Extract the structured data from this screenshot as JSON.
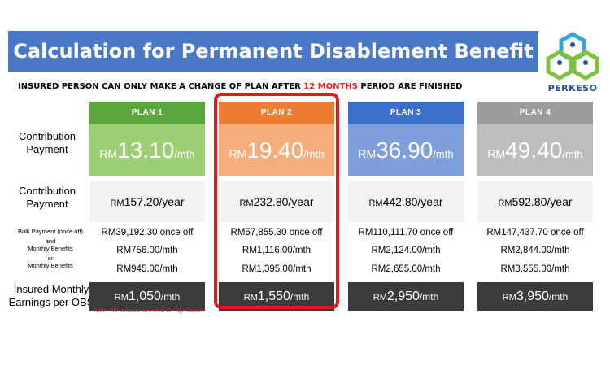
{
  "title": "Calculation for Permanent Disablement Benefit",
  "logo_text": "PERKESO",
  "notice": {
    "before": "INSURED PERSON CAN ONLY MAKE A CHANGE OF PLAN AFTER ",
    "highlight": "12 MONTHS",
    "after": " PERIOD ARE FINISHED"
  },
  "row_labels": {
    "contribution_monthly": "Contribution Payment",
    "contribution_yearly": "Contribution Payment",
    "bulk": "Bulk Payment (once off)",
    "and": "and",
    "monthly_benefits_1": "Monthly Benefits",
    "or": "or",
    "monthly_benefits_2": "Monthly Benefits",
    "insured_earnings": "Insured Monthly Earnings per OBS"
  },
  "currency": "RM",
  "mth_unit": "/mth",
  "year_unit": "/year",
  "plans": [
    {
      "name": "PLAN 1",
      "head_color": "#5aa83c",
      "body_color": "#9ccf74",
      "monthly": "13.10",
      "yearly": "157.20",
      "bulk": "RM39,192.30 once off",
      "benefit_and": "RM756.00/mth",
      "benefit_or": "RM945.00/mth",
      "earnings": "1,050"
    },
    {
      "name": "PLAN 2",
      "head_color": "#ed7d31",
      "body_color": "#f5ad7b",
      "monthly": "19.40",
      "yearly": "232.80",
      "bulk": "RM57,855.30 once off",
      "benefit_and": "RM1,116.00/mth",
      "benefit_or": "RM1,395.00/mth",
      "earnings": "1,550"
    },
    {
      "name": "PLAN 3",
      "head_color": "#3c6fcb",
      "body_color": "#7f9fdc",
      "monthly": "36.90",
      "yearly": "442.80",
      "bulk": "RM110,111.70 once off",
      "benefit_and": "RM2,124.00/mth",
      "benefit_or": "RM2,655.00/mth",
      "earnings": "2,950"
    },
    {
      "name": "PLAN 4",
      "head_color": "#9c9c9c",
      "body_color": "#bdbdbd",
      "monthly": "49.40",
      "yearly": "592.80",
      "bulk": "RM147,437.70 once off",
      "benefit_and": "RM2,844.00/mth",
      "benefit_or": "RM3,555.00/mth",
      "earnings": "3,950"
    }
  ],
  "highlighted_plan": "PLAN 2",
  "highlight_color": "#e6191f",
  "note": "Note: The amount based on the age factor."
}
